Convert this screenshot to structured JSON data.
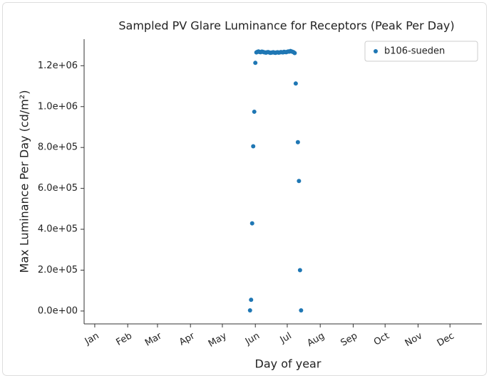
{
  "chart_data": {
    "type": "scatter",
    "title": "Sampled PV Glare Luminance for Receptors (Peak Per Day)",
    "xlabel": "Day of year",
    "ylabel": "Max Luminance Per Day (cd/m²)",
    "xlim": [
      -9,
      365
    ],
    "xticks": [
      {
        "value": 1,
        "label": "Jan"
      },
      {
        "value": 32,
        "label": "Feb"
      },
      {
        "value": 60,
        "label": "Mar"
      },
      {
        "value": 91,
        "label": "Apr"
      },
      {
        "value": 121,
        "label": "May"
      },
      {
        "value": 152,
        "label": "Jun"
      },
      {
        "value": 182,
        "label": "Jul"
      },
      {
        "value": 213,
        "label": "Aug"
      },
      {
        "value": 244,
        "label": "Sep"
      },
      {
        "value": 274,
        "label": "Oct"
      },
      {
        "value": 305,
        "label": "Nov"
      },
      {
        "value": 335,
        "label": "Dec"
      }
    ],
    "ylim": [
      -63000,
      1330000
    ],
    "yticks": [
      {
        "value": 0,
        "label": "0.0e+00"
      },
      {
        "value": 200000,
        "label": "2.0e+05"
      },
      {
        "value": 400000,
        "label": "4.0e+05"
      },
      {
        "value": 600000,
        "label": "6.0e+05"
      },
      {
        "value": 800000,
        "label": "8.0e+05"
      },
      {
        "value": 1000000,
        "label": "1.0e+06"
      },
      {
        "value": 1200000,
        "label": "1.2e+06"
      }
    ],
    "legend": "upper right",
    "series": [
      {
        "name": "b106-sueden",
        "color": "#1f77b4",
        "x": [
          147,
          148,
          149,
          150,
          151,
          152,
          153,
          154,
          155,
          156,
          157,
          158,
          159,
          160,
          161,
          162,
          163,
          164,
          165,
          166,
          167,
          168,
          169,
          170,
          171,
          172,
          173,
          174,
          175,
          176,
          177,
          178,
          179,
          180,
          181,
          182,
          183,
          184,
          185,
          186,
          187,
          188,
          189,
          190,
          192,
          193,
          194,
          195
        ],
        "values": [
          3000,
          55000,
          429000,
          806000,
          975000,
          1214000,
          1265000,
          1268000,
          1270000,
          1267000,
          1266000,
          1269000,
          1268000,
          1266000,
          1265000,
          1264000,
          1266000,
          1267000,
          1265000,
          1263000,
          1264000,
          1265000,
          1266000,
          1264000,
          1263000,
          1265000,
          1266000,
          1264000,
          1265000,
          1267000,
          1266000,
          1265000,
          1268000,
          1267000,
          1266000,
          1268000,
          1270000,
          1269000,
          1272000,
          1270000,
          1268000,
          1266000,
          1262000,
          1113000,
          826000,
          636000,
          200000,
          3000
        ]
      }
    ]
  }
}
